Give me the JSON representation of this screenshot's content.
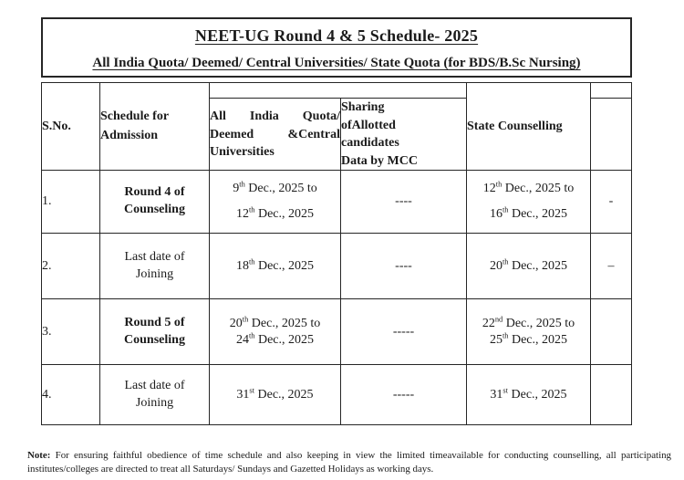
{
  "title": "NEET-UG Round 4 & 5 Schedule- 2025",
  "subtitle": "All India Quota/ Deemed/ Central Universities/ State Quota (for BDS/B.Sc Nursing)",
  "table": {
    "headers": {
      "sno": "S.No.",
      "schedule": "Schedule for Admission",
      "aiq": "All India Quota/ Deemed &Central Universities",
      "sharing": "Sharing\nofAllotted\ncandidates\nData by MCC",
      "state": "State Counselling"
    },
    "rows": [
      {
        "sno": "1.",
        "schedule": "Round 4 of\nCounseling",
        "aiq": "9th Dec., 2025 to\n12th Dec., 2025",
        "sharing": "----",
        "state": "12th Dec., 2025 to\n16th Dec., 2025",
        "extra": "-"
      },
      {
        "sno": "2.",
        "schedule": "Last date of\nJoining",
        "aiq": "18th Dec., 2025",
        "sharing": "----",
        "state": "20th Dec., 2025",
        "extra": "–"
      },
      {
        "sno": "3.",
        "schedule": "Round 5 of\nCounseling",
        "aiq": "20th Dec., 2025 to\n24th Dec., 2025",
        "sharing": "-----",
        "state": "22nd Dec., 2025 to\n25th Dec., 2025",
        "extra": ""
      },
      {
        "sno": "4.",
        "schedule": "Last date of\nJoining",
        "aiq": "31st Dec., 2025",
        "sharing": "-----",
        "state": "31st Dec., 2025",
        "extra": ""
      }
    ]
  },
  "note": {
    "label": "Note:",
    "line1": "For ensuring faithful obedience of time schedule and also keeping in view the limited timeavailable for conducting counselling, all participating",
    "line2": "institutes/colleges are directed to treat all Saturdays/ Sundays and Gazetted Holidays as working days."
  }
}
